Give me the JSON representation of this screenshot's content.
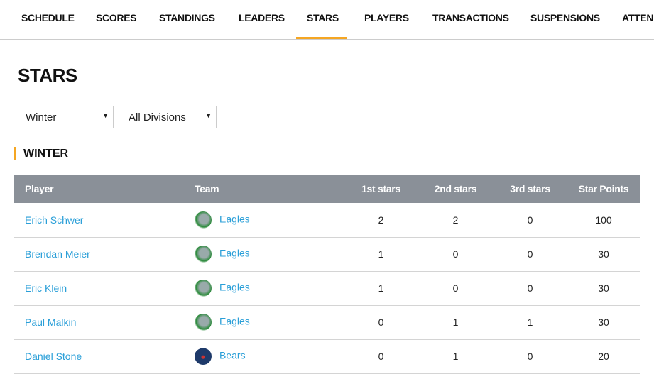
{
  "nav": {
    "tabs": [
      "SCHEDULE",
      "SCORES",
      "STANDINGS",
      "LEADERS",
      "STARS",
      "PLAYERS",
      "TRANSACTIONS",
      "SUSPENSIONS",
      "ATTENDANCE"
    ],
    "active": "STARS"
  },
  "page_title": "STARS",
  "filters": {
    "season": "Winter",
    "division": "All Divisions"
  },
  "section_title": "WINTER",
  "accent": "#f5a623",
  "table": {
    "headers": [
      "Player",
      "Team",
      "1st stars",
      "2nd stars",
      "3rd stars",
      "Star Points"
    ],
    "rows": [
      {
        "player": "Erich Schwer",
        "team": "Eagles",
        "logo": "eagle-logo",
        "first": "2",
        "second": "2",
        "third": "0",
        "points": "100"
      },
      {
        "player": "Brendan Meier",
        "team": "Eagles",
        "logo": "eagle-logo",
        "first": "1",
        "second": "0",
        "third": "0",
        "points": "30"
      },
      {
        "player": "Eric Klein",
        "team": "Eagles",
        "logo": "eagle-logo",
        "first": "1",
        "second": "0",
        "third": "0",
        "points": "30"
      },
      {
        "player": "Paul Malkin",
        "team": "Eagles",
        "logo": "eagle-logo",
        "first": "0",
        "second": "1",
        "third": "1",
        "points": "30"
      },
      {
        "player": "Daniel Stone",
        "team": "Bears",
        "logo": "bear-logo",
        "first": "0",
        "second": "1",
        "third": "0",
        "points": "20"
      }
    ]
  }
}
